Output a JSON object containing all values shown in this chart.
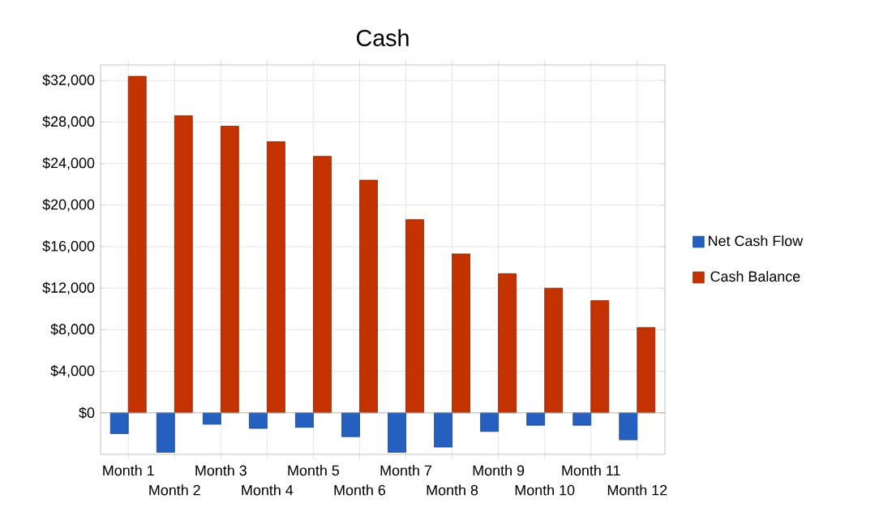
{
  "chart_data": {
    "type": "bar",
    "title": "Cash",
    "categories": [
      "Month 1",
      "Month 2",
      "Month 3",
      "Month 4",
      "Month 5",
      "Month 6",
      "Month 7",
      "Month 8",
      "Month 9",
      "Month 10",
      "Month 11",
      "Month 12"
    ],
    "series": [
      {
        "name": "Net Cash Flow",
        "color": "#2560c0",
        "values": [
          -2000,
          -3800,
          -1100,
          -1500,
          -1400,
          -2300,
          -3800,
          -3300,
          -1800,
          -1200,
          -1200,
          -2600
        ]
      },
      {
        "name": "Cash Balance",
        "color": "#c43200",
        "values": [
          32400,
          28600,
          27600,
          26100,
          24700,
          22400,
          18600,
          15300,
          13400,
          12000,
          10800,
          8200
        ]
      }
    ],
    "ylim": [
      -4000,
      33500
    ],
    "yticks": [
      {
        "value": 0,
        "label": "$0"
      },
      {
        "value": 4000,
        "label": "$4,000"
      },
      {
        "value": 8000,
        "label": "$8,000"
      },
      {
        "value": 12000,
        "label": "$12,000"
      },
      {
        "value": 16000,
        "label": "$16,000"
      },
      {
        "value": 20000,
        "label": "$20,000"
      },
      {
        "value": 24000,
        "label": "$24,000"
      },
      {
        "value": 28000,
        "label": "$28,000"
      },
      {
        "value": 32000,
        "label": "$32,000"
      }
    ],
    "grid": true,
    "legend": "right"
  }
}
